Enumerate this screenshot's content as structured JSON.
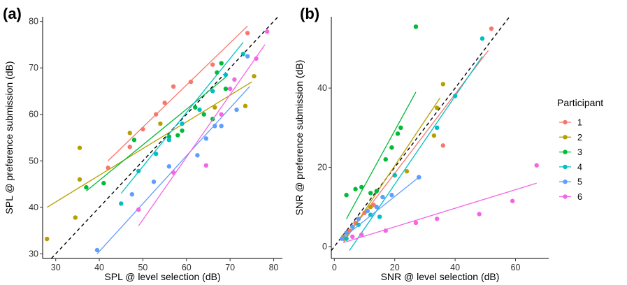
{
  "colors": {
    "1": "#F8766D",
    "2": "#B79F00",
    "3": "#00BA38",
    "4": "#00BFC4",
    "5": "#619CFF",
    "6": "#F564E3"
  },
  "legend": {
    "title": "Participant",
    "entries": [
      "1",
      "2",
      "3",
      "4",
      "5",
      "6"
    ],
    "placement": "right"
  },
  "chart_data": [
    {
      "type": "scatter",
      "panel_label": "(a)",
      "xlabel": "SPL @ level selection (dB)",
      "ylabel": "SPL @ preference submission (dB)",
      "xlim": [
        27,
        82
      ],
      "ylim": [
        29,
        81
      ],
      "xticks": [
        30,
        40,
        50,
        60,
        70,
        80
      ],
      "yticks": [
        30,
        40,
        50,
        60,
        70,
        80
      ],
      "identity_line": true,
      "grid": false,
      "series": [
        {
          "name": "1",
          "points": [
            [
              42,
              48.5
            ],
            [
              47,
              53
            ],
            [
              50,
              56.8
            ],
            [
              53,
              60
            ],
            [
              55,
              62.5
            ],
            [
              57,
              66
            ],
            [
              61,
              67
            ],
            [
              66,
              70.7
            ],
            [
              74,
              77.5
            ]
          ],
          "fit": [
            [
              42,
              50
            ],
            [
              74,
              79
            ]
          ]
        },
        {
          "name": "2",
          "points": [
            [
              28,
              33.2
            ],
            [
              34.5,
              37.8
            ],
            [
              35.5,
              52.8
            ],
            [
              35.5,
              46
            ],
            [
              47,
              56
            ],
            [
              54,
              58
            ],
            [
              66.5,
              61.5
            ],
            [
              73.5,
              61.8
            ],
            [
              75.5,
              68.2
            ]
          ],
          "fit": [
            [
              28,
              40
            ],
            [
              75,
              67
            ]
          ]
        },
        {
          "name": "3",
          "points": [
            [
              37,
              44.3
            ],
            [
              41,
              45.2
            ],
            [
              48,
              54.5
            ],
            [
              56,
              55.2
            ],
            [
              58,
              55.5
            ],
            [
              59,
              56.5
            ],
            [
              62,
              61.5
            ],
            [
              64,
              60
            ],
            [
              66,
              59
            ],
            [
              67,
              69
            ],
            [
              68,
              71
            ],
            [
              69,
              65.5
            ]
          ],
          "fit": [
            [
              37,
              43.5
            ],
            [
              69,
              68
            ]
          ]
        },
        {
          "name": "4",
          "points": [
            [
              45,
              40.8
            ],
            [
              49,
              47.8
            ],
            [
              53,
              51.5
            ],
            [
              56,
              54.5
            ],
            [
              59,
              58
            ],
            [
              63,
              61
            ],
            [
              66,
              65
            ],
            [
              69,
              68.5
            ],
            [
              73,
              73
            ]
          ],
          "fit": [
            [
              45,
              43
            ],
            [
              73,
              75.5
            ]
          ]
        },
        {
          "name": "5",
          "points": [
            [
              39.5,
              30.8
            ],
            [
              47.5,
              42.8
            ],
            [
              52.5,
              45.5
            ],
            [
              56,
              48.8
            ],
            [
              62.5,
              51.2
            ],
            [
              64.5,
              54.8
            ],
            [
              66.5,
              57.5
            ],
            [
              68,
              57.5
            ],
            [
              71.5,
              61
            ],
            [
              74,
              72.5
            ]
          ],
          "fit": [
            [
              39.5,
              30
            ],
            [
              74.5,
              66
            ]
          ]
        },
        {
          "name": "6",
          "points": [
            [
              49,
              39.5
            ],
            [
              57,
              47.5
            ],
            [
              64.5,
              49
            ],
            [
              68,
              60
            ],
            [
              70,
              65.5
            ],
            [
              71,
              67.5
            ],
            [
              76,
              72
            ],
            [
              78.5,
              77.8
            ]
          ],
          "fit": [
            [
              49,
              36
            ],
            [
              78,
              75
            ]
          ]
        }
      ]
    },
    {
      "type": "scatter",
      "panel_label": "(b)",
      "xlabel": "SNR @ level selection (dB)",
      "ylabel": "SNR @ preference submission (dB)",
      "xlim": [
        -1,
        71
      ],
      "ylim": [
        -3,
        58
      ],
      "xticks": [
        0,
        20,
        40,
        60
      ],
      "yticks": [
        0,
        20,
        40
      ],
      "identity_line": true,
      "grid": false,
      "series": [
        {
          "name": "1",
          "points": [
            [
              3,
              2
            ],
            [
              5,
              4
            ],
            [
              7,
              6
            ],
            [
              10,
              8.5
            ],
            [
              13,
              10.5
            ],
            [
              20,
              18
            ],
            [
              36,
              25.5
            ],
            [
              52,
              55
            ]
          ],
          "fit": [
            [
              3,
              1.5
            ],
            [
              51,
              49.5
            ]
          ]
        },
        {
          "name": "2",
          "points": [
            [
              3,
              2.5
            ],
            [
              6,
              5
            ],
            [
              8,
              7
            ],
            [
              12,
              10
            ],
            [
              20,
              18
            ],
            [
              24,
              19
            ],
            [
              33,
              28
            ],
            [
              34,
              35
            ],
            [
              36,
              41
            ]
          ],
          "fit": [
            [
              3,
              1
            ],
            [
              35,
              37.5
            ]
          ]
        },
        {
          "name": "3",
          "points": [
            [
              4,
              13
            ],
            [
              7,
              14.5
            ],
            [
              9,
              15
            ],
            [
              12,
              13.5
            ],
            [
              14,
              14
            ],
            [
              17,
              22
            ],
            [
              19,
              25
            ],
            [
              21,
              28.5
            ],
            [
              22,
              30
            ],
            [
              27,
              55.5
            ]
          ],
          "fit": [
            [
              4,
              7
            ],
            [
              27,
              39
            ]
          ]
        },
        {
          "name": "4",
          "points": [
            [
              4,
              2
            ],
            [
              8,
              5.5
            ],
            [
              12,
              8
            ],
            [
              15,
              7.5
            ],
            [
              20,
              18
            ],
            [
              28,
              17.5
            ],
            [
              34,
              30
            ],
            [
              40,
              38
            ],
            [
              49,
              52.5
            ]
          ],
          "fit": [
            [
              5,
              -1
            ],
            [
              49,
              48
            ]
          ]
        },
        {
          "name": "5",
          "points": [
            [
              2.5,
              2
            ],
            [
              4,
              3.5
            ],
            [
              6,
              5
            ],
            [
              8,
              7
            ],
            [
              11,
              9
            ],
            [
              14,
              10
            ],
            [
              16,
              12.5
            ],
            [
              19,
              13
            ],
            [
              28,
              17.5
            ]
          ],
          "fit": [
            [
              2.5,
              2
            ],
            [
              28,
              17.5
            ]
          ]
        },
        {
          "name": "6",
          "points": [
            [
              6,
              2.5
            ],
            [
              9,
              3
            ],
            [
              17,
              4
            ],
            [
              27,
              6
            ],
            [
              34,
              7
            ],
            [
              48,
              8.2
            ],
            [
              59,
              11.5
            ],
            [
              67,
              20.5
            ]
          ],
          "fit": [
            [
              3,
              1
            ],
            [
              67,
              16
            ]
          ]
        }
      ]
    }
  ]
}
